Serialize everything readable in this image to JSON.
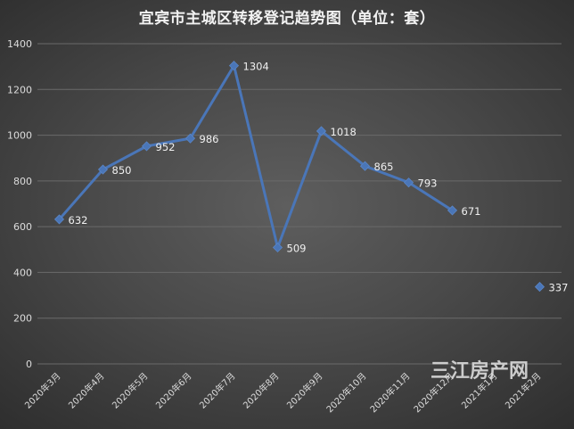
{
  "chart_data": {
    "type": "line",
    "title": "宜宾市主城区转移登记趋势图（单位：套）",
    "categories": [
      "2020年3月",
      "2020年4月",
      "2020年5月",
      "2020年6月",
      "2020年7月",
      "2020年8月",
      "2020年9月",
      "2020年10月",
      "2020年11月",
      "2020年12月",
      "2021年1月",
      "2021年2月"
    ],
    "series": [
      {
        "values": [
          632,
          850,
          952,
          986,
          1304,
          509,
          1018,
          865,
          793,
          671,
          null,
          337
        ]
      }
    ],
    "ylim": [
      0,
      1400
    ],
    "yticks": [
      0,
      200,
      400,
      600,
      800,
      1000,
      1200,
      1400
    ],
    "grid": true,
    "legend": "none",
    "colors": {
      "line": "#4a76b8",
      "marker": "#4a76b8",
      "grid": "#6a6a6a"
    }
  },
  "watermark": "三江房产网"
}
